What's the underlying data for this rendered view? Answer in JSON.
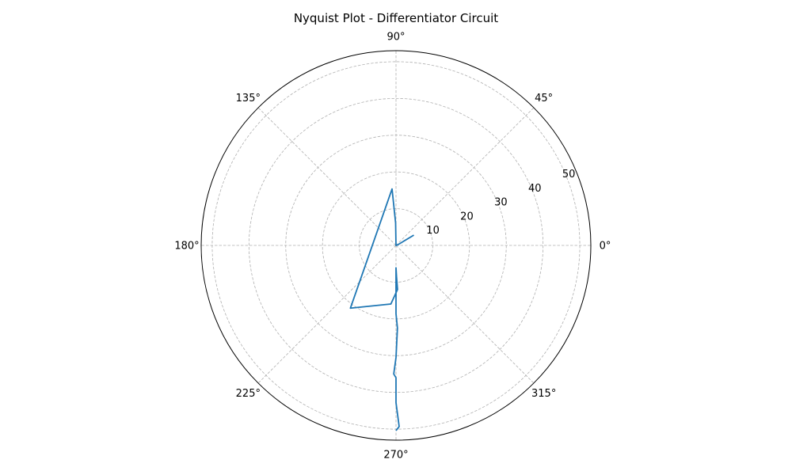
{
  "chart_data": {
    "type": "line",
    "projection": "polar",
    "title": "Nyquist Plot - Differentiator Circuit",
    "angular_tick_labels": [
      "0°",
      "45°",
      "90°",
      "135°",
      "180°",
      "225°",
      "270°",
      "315°"
    ],
    "angular_ticks_deg": [
      0,
      45,
      90,
      135,
      180,
      225,
      270,
      315
    ],
    "radial_tick_labels": [
      "10",
      "20",
      "30",
      "40",
      "50"
    ],
    "radial_ticks": [
      10,
      20,
      30,
      40,
      50
    ],
    "rlim": [
      0,
      53
    ],
    "grid": true,
    "legend": "none",
    "series": [
      {
        "color": "#1f77b4",
        "points": [
          {
            "theta_deg": 30,
            "r": 5.6
          },
          {
            "theta_deg": 17,
            "r": 0.4
          },
          {
            "theta_deg": 90,
            "r": 0.0
          },
          {
            "theta_deg": 91,
            "r": 6.1
          },
          {
            "theta_deg": 94,
            "r": 15.4
          },
          {
            "theta_deg": 234,
            "r": 21.1
          },
          {
            "theta_deg": 265,
            "r": 16.0
          },
          {
            "theta_deg": 272,
            "r": 12.0
          },
          {
            "theta_deg": 271,
            "r": 8.6
          },
          {
            "theta_deg": 270,
            "r": 6.1
          },
          {
            "theta_deg": 270,
            "r": 8.6
          },
          {
            "theta_deg": 270,
            "r": 12.1
          },
          {
            "theta_deg": 270,
            "r": 18.6
          },
          {
            "theta_deg": 271,
            "r": 22.5
          },
          {
            "theta_deg": 270,
            "r": 30.5
          },
          {
            "theta_deg": 269,
            "r": 35.0
          },
          {
            "theta_deg": 270,
            "r": 36.0
          },
          {
            "theta_deg": 270,
            "r": 42.8
          },
          {
            "theta_deg": 271,
            "r": 49.3
          },
          {
            "theta_deg": 270,
            "r": 50.4
          }
        ]
      }
    ]
  },
  "colors": {
    "axes": "#000000",
    "grid": "#b0b0b0",
    "line": "#1f77b4"
  }
}
